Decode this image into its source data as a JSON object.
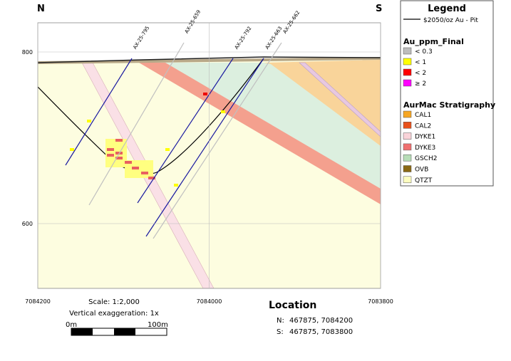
{
  "header": {
    "left": "N",
    "right": "S"
  },
  "axes": {
    "elevation_ticks": [
      800,
      600
    ],
    "northing_ticks": [
      7084200,
      7084000,
      7083800
    ]
  },
  "drill_holes": [
    {
      "label": "AX-25-795"
    },
    {
      "label": "AX-25-659"
    },
    {
      "label": "AX-25-792"
    },
    {
      "label": "AX-25-663"
    },
    {
      "label": "AX-25-662"
    }
  ],
  "legend": {
    "title": "Legend",
    "pit": "$2050/oz Au - Pit",
    "au_title": "Au_ppm_Final",
    "au_classes": [
      "< 0.3",
      "< 1",
      "< 2",
      "≥ 2"
    ],
    "strat_title": "AurMac Stratigraphy",
    "strat_units": [
      "CAL1",
      "CAL2",
      "DYKE1",
      "DYKE3",
      "GSCH2",
      "OVB",
      "QTZT"
    ]
  },
  "scale": {
    "text": "Scale: 1:2,000",
    "exaggeration": "Vertical exaggeration: 1x",
    "start": "0m",
    "end": "100m"
  },
  "location": {
    "title": "Location",
    "n_label": "N:",
    "n_value": "467875, 7084200",
    "s_label": "S:",
    "s_value": "467875, 7083800"
  }
}
